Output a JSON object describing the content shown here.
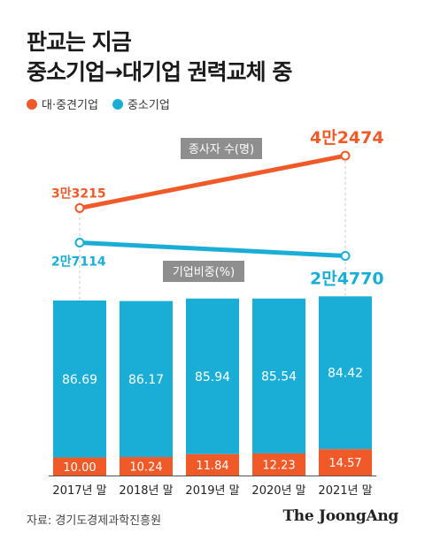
{
  "title_line1": "판교는 지금",
  "title_line2": "중소기업→대기업 권력교체 중",
  "legend": [
    {
      "label": "대·중견기업",
      "color": "#f05a28"
    },
    {
      "label": "중소기업",
      "color": "#1aaed6"
    }
  ],
  "chart_data": [
    {
      "type": "line",
      "title": "종사자 수(명)",
      "x": [
        "2017년 말",
        "2021년 말"
      ],
      "series": [
        {
          "name": "대·중견기업",
          "values": [
            33215,
            42474
          ],
          "labels": [
            "3만3215",
            "4만2474"
          ],
          "color": "#f05a28"
        },
        {
          "name": "중소기업",
          "values": [
            27114,
            24770
          ],
          "labels": [
            "2만7114",
            "2만4770"
          ],
          "color": "#1aaed6"
        }
      ]
    },
    {
      "type": "bar",
      "stacked": true,
      "title": "기업비중(%)",
      "categories": [
        "2017년 말",
        "2018년 말",
        "2019년 말",
        "2020년 말",
        "2021년 말"
      ],
      "series": [
        {
          "name": "중소기업",
          "values": [
            86.69,
            86.17,
            85.94,
            85.54,
            84.42
          ],
          "labels": [
            "86.69",
            "86.17",
            "85.94",
            "85.54",
            "84.42"
          ],
          "color": "#1aaed6"
        },
        {
          "name": "대·중견기업",
          "values": [
            10.0,
            10.24,
            11.84,
            12.23,
            14.57
          ],
          "labels": [
            "10.00",
            "10.24",
            "11.84",
            "12.23",
            "14.57"
          ],
          "color": "#f05a28"
        }
      ]
    }
  ],
  "footer": {
    "source": "자료: 경기도경제과학진흥원",
    "brand": "The JoongAng"
  }
}
